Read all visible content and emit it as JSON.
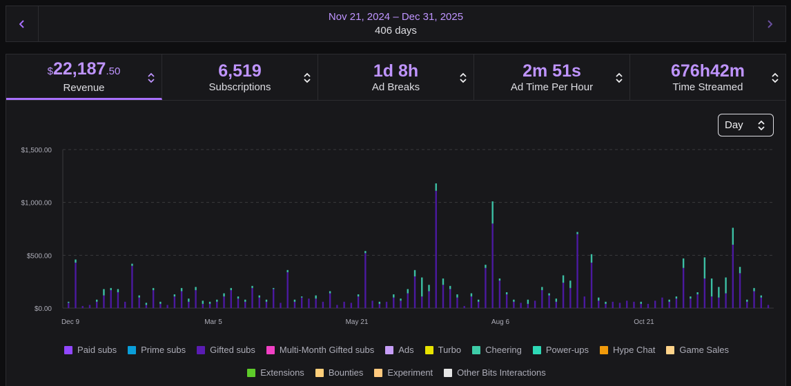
{
  "date_nav": {
    "range": "Nov 21, 2024 – Dec 31, 2025",
    "days": "406 days",
    "prev_icon": "chevron-left-icon",
    "next_icon": "chevron-right-icon"
  },
  "stats": [
    {
      "currency": "$",
      "value": "22,187",
      "cents": ".50",
      "label": "Revenue",
      "active": true
    },
    {
      "value": "6,519",
      "label": "Subscriptions"
    },
    {
      "value": "1d 8h",
      "label": "Ad Breaks"
    },
    {
      "value": "2m 51s",
      "label": "Ad Time Per Hour"
    },
    {
      "value": "676h42m",
      "label": "Time Streamed"
    }
  ],
  "granularity": {
    "selected": "Day"
  },
  "colors": {
    "accent": "#a970ff",
    "paid": "#4b19a0",
    "cheering": "#3cbfa4",
    "extensions": "#5ecb2a"
  },
  "legend": [
    {
      "name": "Paid subs",
      "color": "#9147ff"
    },
    {
      "name": "Prime subs",
      "color": "#0a9ed9"
    },
    {
      "name": "Gifted subs",
      "color": "#5a1cb3"
    },
    {
      "name": "Multi-Month Gifted subs",
      "color": "#f140c4"
    },
    {
      "name": "Ads",
      "color": "#c69df7"
    },
    {
      "name": "Turbo",
      "color": "#e8e300"
    },
    {
      "name": "Cheering",
      "color": "#3ecca8"
    },
    {
      "name": "Power-ups",
      "color": "#2ed8b6"
    },
    {
      "name": "Hype Chat",
      "color": "#f09a0b"
    },
    {
      "name": "Game Sales",
      "color": "#ffd38a"
    },
    {
      "name": "Extensions",
      "color": "#5ecb2a"
    },
    {
      "name": "Bounties",
      "color": "#ffcf7a"
    },
    {
      "name": "Experiment",
      "color": "#ffc97e"
    },
    {
      "name": "Other Bits Interactions",
      "color": "#e6e6e6"
    }
  ],
  "chart_data": {
    "type": "bar",
    "stacked": true,
    "x_ticks": [
      "Dec 9",
      "Mar 5",
      "May 21",
      "Aug 6",
      "Oct 21"
    ],
    "y_ticks": [
      "$0.00",
      "$500.00",
      "$1,000.00",
      "$1,500.00"
    ],
    "ylim": [
      0,
      1500
    ],
    "grid": true,
    "legend_position": "bottom",
    "series": [
      {
        "name": "Paid subs",
        "values": [
          50,
          430,
          20,
          30,
          60,
          120,
          170,
          150,
          60,
          400,
          100,
          30,
          170,
          40,
          30,
          110,
          160,
          60,
          170,
          40,
          40,
          60,
          110,
          170,
          90,
          60,
          190,
          100,
          60,
          180,
          50,
          340,
          60,
          100,
          90,
          90,
          60,
          140,
          30,
          60,
          50,
          110,
          520,
          70,
          40,
          60,
          100,
          70,
          140,
          300,
          110,
          160,
          1110,
          220,
          180,
          100,
          20,
          110,
          60,
          380,
          800,
          260,
          130,
          60,
          50,
          40,
          70,
          170,
          120,
          60,
          240,
          190,
          700,
          110,
          430,
          70,
          40,
          60,
          50,
          70,
          60,
          40,
          40,
          70,
          100,
          60,
          90,
          380,
          90,
          130,
          280,
          110,
          100,
          140,
          600,
          330,
          60,
          160,
          100,
          30
        ]
      },
      {
        "name": "Cheering",
        "values": [
          10,
          30,
          0,
          0,
          20,
          60,
          20,
          30,
          0,
          20,
          20,
          20,
          20,
          20,
          0,
          20,
          30,
          30,
          30,
          30,
          20,
          20,
          30,
          20,
          20,
          20,
          20,
          20,
          20,
          10,
          0,
          20,
          20,
          10,
          0,
          30,
          0,
          20,
          0,
          0,
          0,
          20,
          20,
          0,
          20,
          0,
          30,
          20,
          40,
          60,
          180,
          60,
          70,
          60,
          30,
          30,
          0,
          30,
          20,
          30,
          210,
          20,
          20,
          20,
          0,
          40,
          0,
          30,
          20,
          30,
          70,
          70,
          20,
          0,
          80,
          30,
          20,
          0,
          0,
          0,
          0,
          20,
          0,
          0,
          0,
          20,
          20,
          90,
          20,
          20,
          200,
          170,
          100,
          150,
          160,
          60,
          20,
          30,
          20,
          0
        ]
      },
      {
        "name": "Extensions",
        "values": [
          0,
          0,
          0,
          0,
          0,
          0,
          0,
          0,
          0,
          0,
          0,
          0,
          0,
          0,
          0,
          0,
          0,
          0,
          0,
          0,
          0,
          0,
          0,
          0,
          0,
          0,
          0,
          0,
          0,
          0,
          0,
          0,
          0,
          0,
          0,
          0,
          0,
          0,
          0,
          0,
          0,
          0,
          0,
          0,
          0,
          0,
          0,
          0,
          0,
          0,
          0,
          0,
          0,
          0,
          0,
          0,
          0,
          0,
          0,
          0,
          0,
          0,
          0,
          0,
          0,
          0,
          0,
          0,
          0,
          0,
          0,
          0,
          0,
          0,
          0,
          0,
          0,
          0,
          0,
          0,
          0,
          0,
          0,
          0,
          0,
          0,
          0,
          0,
          0,
          0,
          0,
          0,
          0,
          0,
          0,
          0,
          0,
          0,
          0,
          0
        ]
      }
    ]
  }
}
